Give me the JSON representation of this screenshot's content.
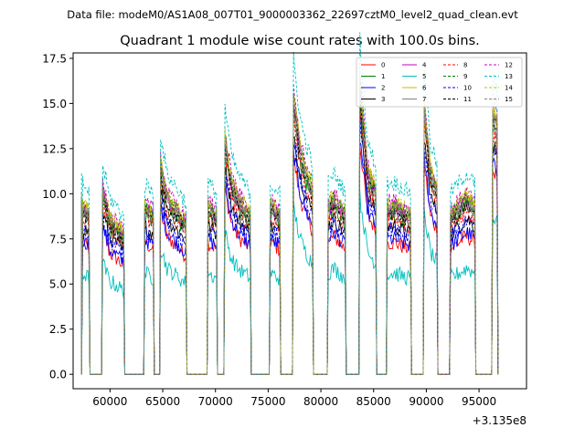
{
  "suptitle": "Data file: modeM0/AS1A08_007T01_9000003362_22697cztM0_level2_quad_clean.evt",
  "chart_data": {
    "type": "line",
    "title": "Quadrant 1 module wise count rates with 100.0s bins.",
    "xlabel": "",
    "ylabel": "",
    "x_offset_label": "+3.135e8",
    "xlim": [
      56500,
      99500
    ],
    "ylim": [
      -0.8,
      17.8
    ],
    "xticks": [
      60000,
      65000,
      70000,
      75000,
      80000,
      85000,
      90000,
      95000
    ],
    "xtick_labels": [
      "60000",
      "65000",
      "70000",
      "75000",
      "80000",
      "85000",
      "90000",
      "95000"
    ],
    "yticks": [
      0.0,
      2.5,
      5.0,
      7.5,
      10.0,
      12.5,
      15.0,
      17.5
    ],
    "ytick_labels": [
      "0.0",
      "2.5",
      "5.0",
      "7.5",
      "10.0",
      "12.5",
      "15.0",
      "17.5"
    ],
    "grid": false,
    "legend_position": "top-right",
    "legend_columns": 4,
    "segments": [
      [
        57400,
        58000
      ],
      [
        59300,
        61300
      ],
      [
        63300,
        64100
      ],
      [
        64800,
        67200
      ],
      [
        69300,
        70100
      ],
      [
        70900,
        73300
      ],
      [
        75200,
        76100
      ],
      [
        77400,
        79200
      ],
      [
        80700,
        82300
      ],
      [
        83700,
        85200
      ],
      [
        86300,
        88500
      ],
      [
        89800,
        91000
      ],
      [
        92300,
        94600
      ],
      [
        96300,
        96700
      ]
    ],
    "segment_shapes": [
      [
        1.0,
        0.95
      ],
      [
        1.1,
        0.92,
        0.88,
        0.82
      ],
      [
        1.0,
        0.95
      ],
      [
        1.25,
        1.05,
        1.0,
        0.95,
        0.9
      ],
      [
        1.0,
        0.95
      ],
      [
        1.4,
        1.15,
        1.05,
        1.0,
        0.95
      ],
      [
        1.0,
        0.95
      ],
      [
        1.65,
        1.35,
        1.2,
        1.1
      ],
      [
        1.0,
        1.05,
        1.0,
        0.95
      ],
      [
        1.75,
        1.2,
        1.1
      ],
      [
        1.0,
        1.0,
        0.97,
        0.95
      ],
      [
        1.6,
        1.2,
        1.1
      ],
      [
        0.95,
        1.0,
        1.05,
        1.0
      ],
      [
        1.55,
        1.5
      ]
    ],
    "series": [
      {
        "name": "0",
        "color": "#ff0000",
        "style": "solid",
        "base": 7.3
      },
      {
        "name": "1",
        "color": "#008000",
        "style": "solid",
        "base": 8.8
      },
      {
        "name": "2",
        "color": "#0000ff",
        "style": "solid",
        "base": 7.5
      },
      {
        "name": "3",
        "color": "#000000",
        "style": "solid",
        "base": 8.2
      },
      {
        "name": "4",
        "color": "#c000c0",
        "style": "solid",
        "base": 9.2
      },
      {
        "name": "5",
        "color": "#00bfbf",
        "style": "solid",
        "base": 5.6
      },
      {
        "name": "6",
        "color": "#bfbf00",
        "style": "solid",
        "base": 9.4
      },
      {
        "name": "7",
        "color": "#808080",
        "style": "solid",
        "base": 9.0
      },
      {
        "name": "8",
        "color": "#ff0000",
        "style": "dashed",
        "base": 8.6
      },
      {
        "name": "9",
        "color": "#008000",
        "style": "dashed",
        "base": 9.3
      },
      {
        "name": "10",
        "color": "#0000ff",
        "style": "dashed",
        "base": 8.0
      },
      {
        "name": "11",
        "color": "#000000",
        "style": "dashed",
        "base": 9.0
      },
      {
        "name": "12",
        "color": "#c000c0",
        "style": "dashed",
        "base": 9.6
      },
      {
        "name": "13",
        "color": "#00bfbf",
        "style": "dashed",
        "base": 10.6
      },
      {
        "name": "14",
        "color": "#bfbf00",
        "style": "dashed",
        "base": 9.5
      },
      {
        "name": "15",
        "color": "#808080",
        "style": "dashed",
        "base": 9.2
      }
    ]
  }
}
